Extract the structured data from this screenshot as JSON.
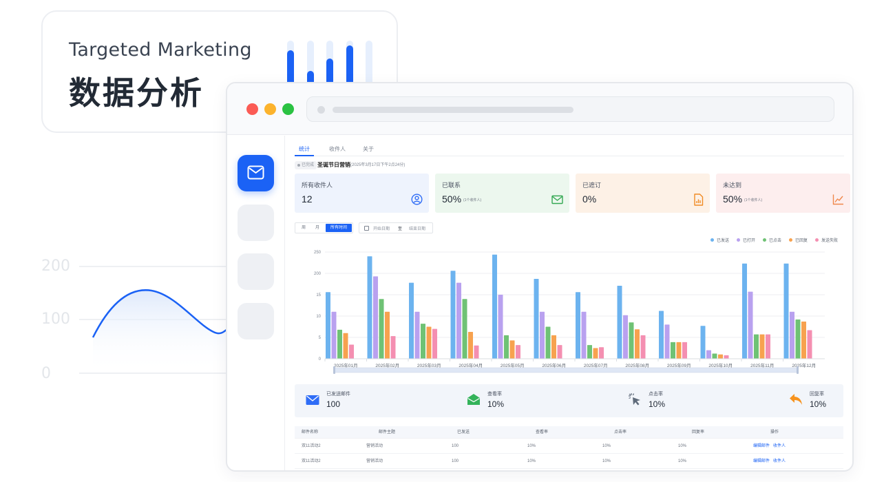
{
  "hero": {
    "subtitle": "Targeted Marketing",
    "title": "数据分析"
  },
  "background_chart": {
    "y_ticks": [
      "200",
      "100",
      "0"
    ]
  },
  "tabs": [
    {
      "label": "统计",
      "active": true
    },
    {
      "label": "收件人",
      "active": false
    },
    {
      "label": "关于",
      "active": false
    }
  ],
  "campaign": {
    "status": "已完成",
    "name": "圣诞节日营销",
    "date": "(2025年3月17日下午2点24分)"
  },
  "stats": [
    {
      "label": "所有收件人",
      "value": "12",
      "note": "",
      "icon": "user-icon",
      "color": "#2f6df6"
    },
    {
      "label": "已联系",
      "value": "50%",
      "note": "(1个收件人)",
      "icon": "mail-icon",
      "color": "#34a853"
    },
    {
      "label": "已遮订",
      "value": "0%",
      "note": "",
      "icon": "document-icon",
      "color": "#f08b23"
    },
    {
      "label": "未达到",
      "value": "50%",
      "note": "(1个收件人)",
      "icon": "trend-icon",
      "color": "#f0874a"
    }
  ],
  "filters": {
    "periods": [
      "周",
      "月",
      "所有时间"
    ],
    "active_period": "所有时间",
    "start_placeholder": "开始日期",
    "separator": "至",
    "end_placeholder": "结束日期"
  },
  "chart_data": {
    "type": "bar",
    "categories": [
      "2025年01月",
      "2025年02月",
      "2025年03月",
      "2025年04月",
      "2025年05月",
      "2025年06月",
      "2025年07月",
      "2025年08月",
      "2025年09月",
      "2025年10月",
      "2025年11月",
      "2025年12月"
    ],
    "series": [
      {
        "name": "已发送",
        "color": "#6cb3ef",
        "values": [
          156,
          240,
          178,
          206,
          244,
          187,
          156,
          171,
          112,
          77,
          223,
          223
        ]
      },
      {
        "name": "已打开",
        "color": "#b9a1ef",
        "values": [
          110,
          193,
          110,
          178,
          150,
          110,
          110,
          102,
          80,
          20,
          157,
          110
        ]
      },
      {
        "name": "已点击",
        "color": "#6fc275",
        "values": [
          68,
          140,
          82,
          140,
          55,
          75,
          32,
          85,
          39,
          12,
          57,
          92
        ]
      },
      {
        "name": "已回复",
        "color": "#f7a24f",
        "values": [
          60,
          110,
          75,
          63,
          43,
          55,
          25,
          69,
          39,
          10,
          57,
          87
        ]
      },
      {
        "name": "发送失败",
        "color": "#f48fb1",
        "values": [
          33,
          53,
          70,
          31,
          32,
          32,
          27,
          55,
          39,
          8,
          57,
          67
        ]
      }
    ],
    "y_ticks": [
      "250",
      "200",
      "15",
      "10",
      "5",
      "0"
    ],
    "ylim": [
      0,
      250
    ],
    "legend_position": "top-right",
    "grid": true
  },
  "summary": [
    {
      "label": "已发送邮件",
      "value": "100",
      "icon": "envelope-icon",
      "color": "#2f6df6"
    },
    {
      "label": "查看率",
      "value": "10%",
      "icon": "open-envelope-icon",
      "color": "#34b35a"
    },
    {
      "label": "点击率",
      "value": "10%",
      "icon": "cursor-click-icon",
      "color": "#5f6b7a"
    },
    {
      "label": "回复率",
      "value": "10%",
      "icon": "reply-arrow-icon",
      "color": "#f7931e"
    }
  ],
  "table": {
    "headers": [
      "邮件名称",
      "邮件主题",
      "已发送",
      "查看率",
      "点击率",
      "回复率",
      "操作"
    ],
    "rows": [
      {
        "name": "双11活动2",
        "subject": "营销活动",
        "sent": "100",
        "view": "10%",
        "click": "10%",
        "reply": "10%",
        "action1": "编辑邮件",
        "action2": "收件人"
      },
      {
        "name": "双11活动2",
        "subject": "营销活动",
        "sent": "100",
        "view": "10%",
        "click": "10%",
        "reply": "10%",
        "action1": "编辑邮件",
        "action2": "收件人"
      }
    ]
  }
}
